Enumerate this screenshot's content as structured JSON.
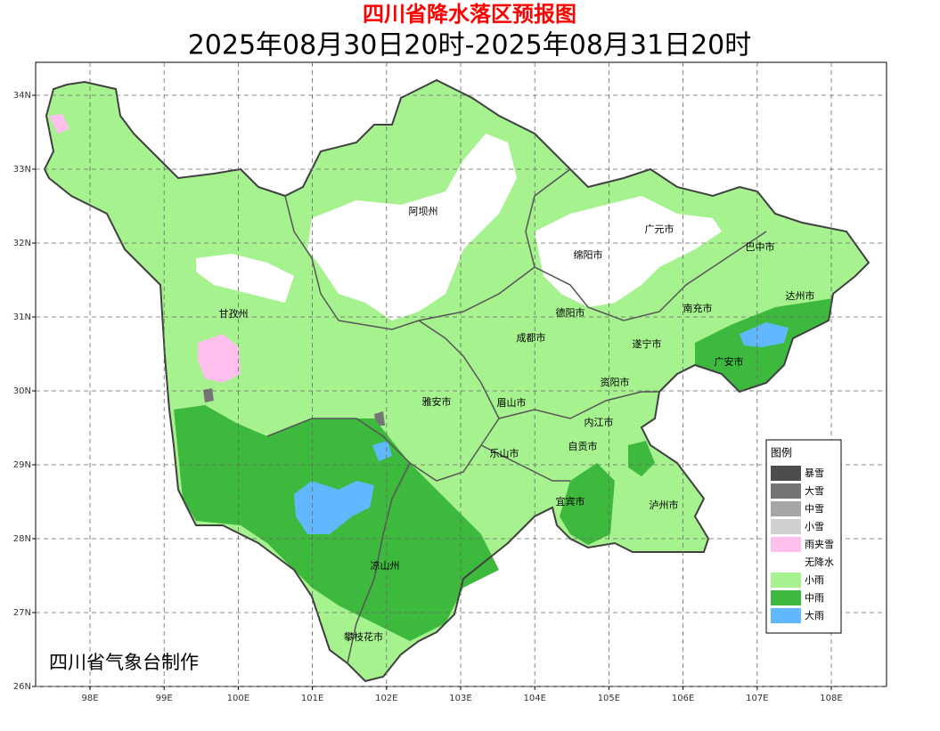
{
  "header": {
    "title": "四川省降水落区预报图",
    "subtitle": "2025年08月30日20时-2025年08月31日20时"
  },
  "map": {
    "lat_ticks": [
      {
        "value": 34,
        "label": "34N"
      },
      {
        "value": 33,
        "label": "33N"
      },
      {
        "value": 32,
        "label": "32N"
      },
      {
        "value": 31,
        "label": "31N"
      },
      {
        "value": 30,
        "label": "30N"
      },
      {
        "value": 29,
        "label": "29N"
      },
      {
        "value": 28,
        "label": "28N"
      },
      {
        "value": 27,
        "label": "27N"
      },
      {
        "value": 26,
        "label": "26N"
      }
    ],
    "lon_ticks": [
      {
        "value": 98,
        "label": "98E"
      },
      {
        "value": 99,
        "label": "99E"
      },
      {
        "value": 100,
        "label": "100E"
      },
      {
        "value": 101,
        "label": "101E"
      },
      {
        "value": 102,
        "label": "102E"
      },
      {
        "value": 103,
        "label": "103E"
      },
      {
        "value": 104,
        "label": "104E"
      },
      {
        "value": 105,
        "label": "105E"
      },
      {
        "value": 106,
        "label": "106E"
      },
      {
        "value": 107,
        "label": "107E"
      },
      {
        "value": 108,
        "label": "108E"
      }
    ],
    "cities": [
      "阿坝州",
      "广元市",
      "巴中市",
      "绵阳市",
      "达州市",
      "甘孜州",
      "德阳市",
      "南充市",
      "成都市",
      "遂宁市",
      "广安市",
      "资阳市",
      "雅安市",
      "眉山市",
      "内江市",
      "自贡市",
      "乐山市",
      "宜宾市",
      "泸州市",
      "凉山州",
      "攀枝花市"
    ],
    "credit": "四川省气象台制作"
  },
  "legend": {
    "title": "图例",
    "items": [
      {
        "label": "暴雪",
        "color": "#4d4d4d"
      },
      {
        "label": "大雪",
        "color": "#757575"
      },
      {
        "label": "中雪",
        "color": "#a6a6a6"
      },
      {
        "label": "小雪",
        "color": "#d0d0d0"
      },
      {
        "label": "雨夹雪",
        "color": "#ffc0ee"
      },
      {
        "label": "无降水",
        "color": "#ffffff"
      },
      {
        "label": "小雨",
        "color": "#a6f28f"
      },
      {
        "label": "中雨",
        "color": "#3dba3d"
      },
      {
        "label": "大雨",
        "color": "#61b8ff"
      }
    ]
  }
}
